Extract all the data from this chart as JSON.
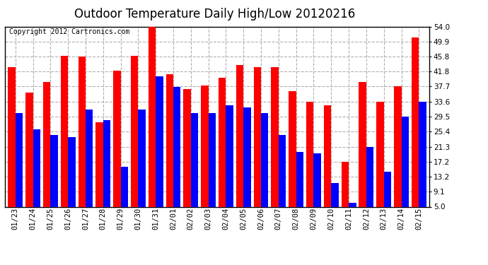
{
  "title": "Outdoor Temperature Daily High/Low 20120216",
  "copyright": "Copyright 2012 Cartronics.com",
  "dates": [
    "01/23",
    "01/24",
    "01/25",
    "01/26",
    "01/27",
    "01/28",
    "01/29",
    "01/30",
    "01/31",
    "02/01",
    "02/02",
    "02/03",
    "02/04",
    "02/05",
    "02/06",
    "02/07",
    "02/08",
    "02/09",
    "02/10",
    "02/11",
    "02/12",
    "02/13",
    "02/14",
    "02/15"
  ],
  "highs": [
    43.0,
    36.0,
    39.0,
    46.0,
    45.8,
    28.0,
    42.0,
    46.0,
    54.0,
    41.0,
    37.0,
    38.0,
    40.0,
    43.5,
    43.0,
    43.0,
    36.5,
    33.5,
    32.5,
    17.2,
    39.0,
    33.5,
    37.7,
    51.0
  ],
  "lows": [
    30.5,
    26.0,
    24.5,
    24.0,
    31.5,
    28.5,
    15.8,
    31.5,
    40.5,
    37.5,
    30.5,
    30.5,
    32.5,
    32.0,
    30.5,
    24.5,
    19.8,
    19.5,
    11.5,
    6.0,
    21.3,
    14.5,
    29.5,
    33.5
  ],
  "high_color": "#ff0000",
  "low_color": "#0000ff",
  "bg_color": "#ffffff",
  "grid_color": "#b0b0b0",
  "bar_width": 0.42,
  "ylim_min": 5.0,
  "ylim_max": 54.0,
  "yticks": [
    5.0,
    9.1,
    13.2,
    17.2,
    21.3,
    25.4,
    29.5,
    33.6,
    37.7,
    41.8,
    45.8,
    49.9,
    54.0
  ],
  "title_fontsize": 12,
  "tick_fontsize": 7.5,
  "copyright_fontsize": 7
}
